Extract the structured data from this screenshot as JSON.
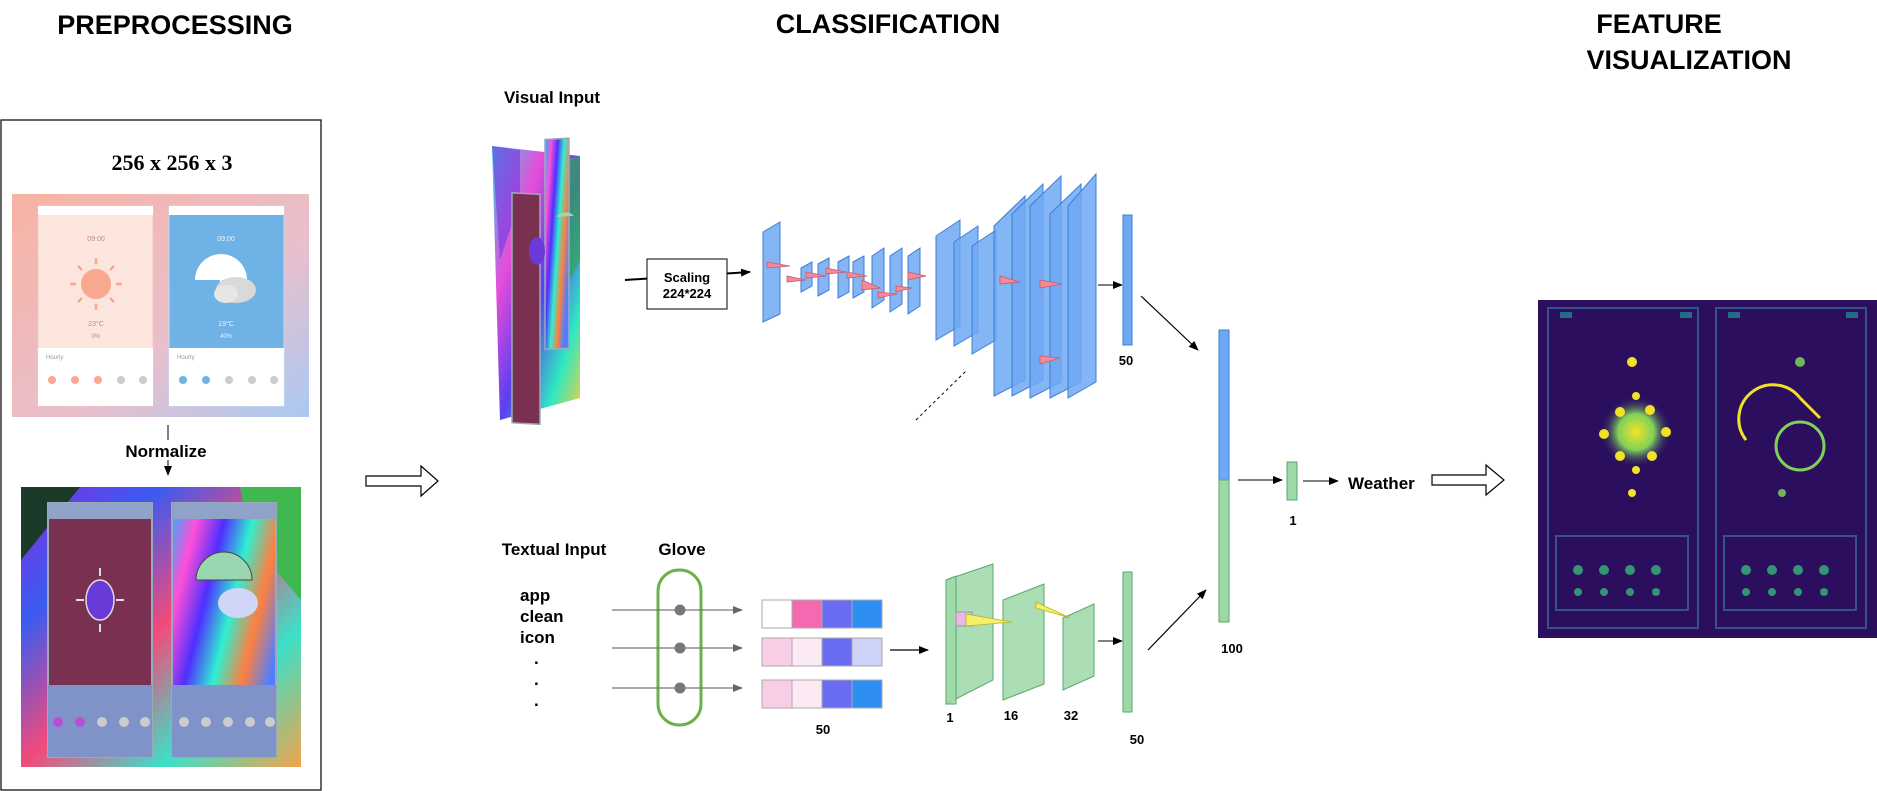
{
  "headers": {
    "preprocessing": "PREPROCESSING",
    "classification": "CLASSIFICATION",
    "feature_line1": "FEATURE",
    "feature_line2": "VISUALIZATION"
  },
  "preprocessing": {
    "size_label": "256 x 256 x 3",
    "normalize_label": "Normalize",
    "screens": {
      "left": {
        "time": "09:00",
        "temp": "23°C",
        "pct": "0%",
        "section": "Hourly"
      },
      "right": {
        "time": "09:00",
        "temp": "19°C",
        "pct": "40%",
        "section": "Hourly"
      }
    }
  },
  "classification": {
    "visual_input_label": "Visual Input",
    "scaling_line1": "Scaling",
    "scaling_line2": "224*224",
    "visual_output_size": "50",
    "textual_input_label": "Textual Input",
    "glove_label": "Glove",
    "words": [
      "app",
      "clean",
      "icon",
      ".",
      ".",
      "."
    ],
    "embedding_size": "50",
    "conv_filters": [
      "1",
      "16",
      "32"
    ],
    "text_output_size": "50",
    "concat_size": "100",
    "final_size": "1",
    "output_label": "Weather"
  },
  "colors": {
    "cnn_blue": "#6fa8f2",
    "text_green": "#9ed8a8",
    "heatmap_bg": "#2b0f5e",
    "heat_yellow": "#f2e227"
  }
}
